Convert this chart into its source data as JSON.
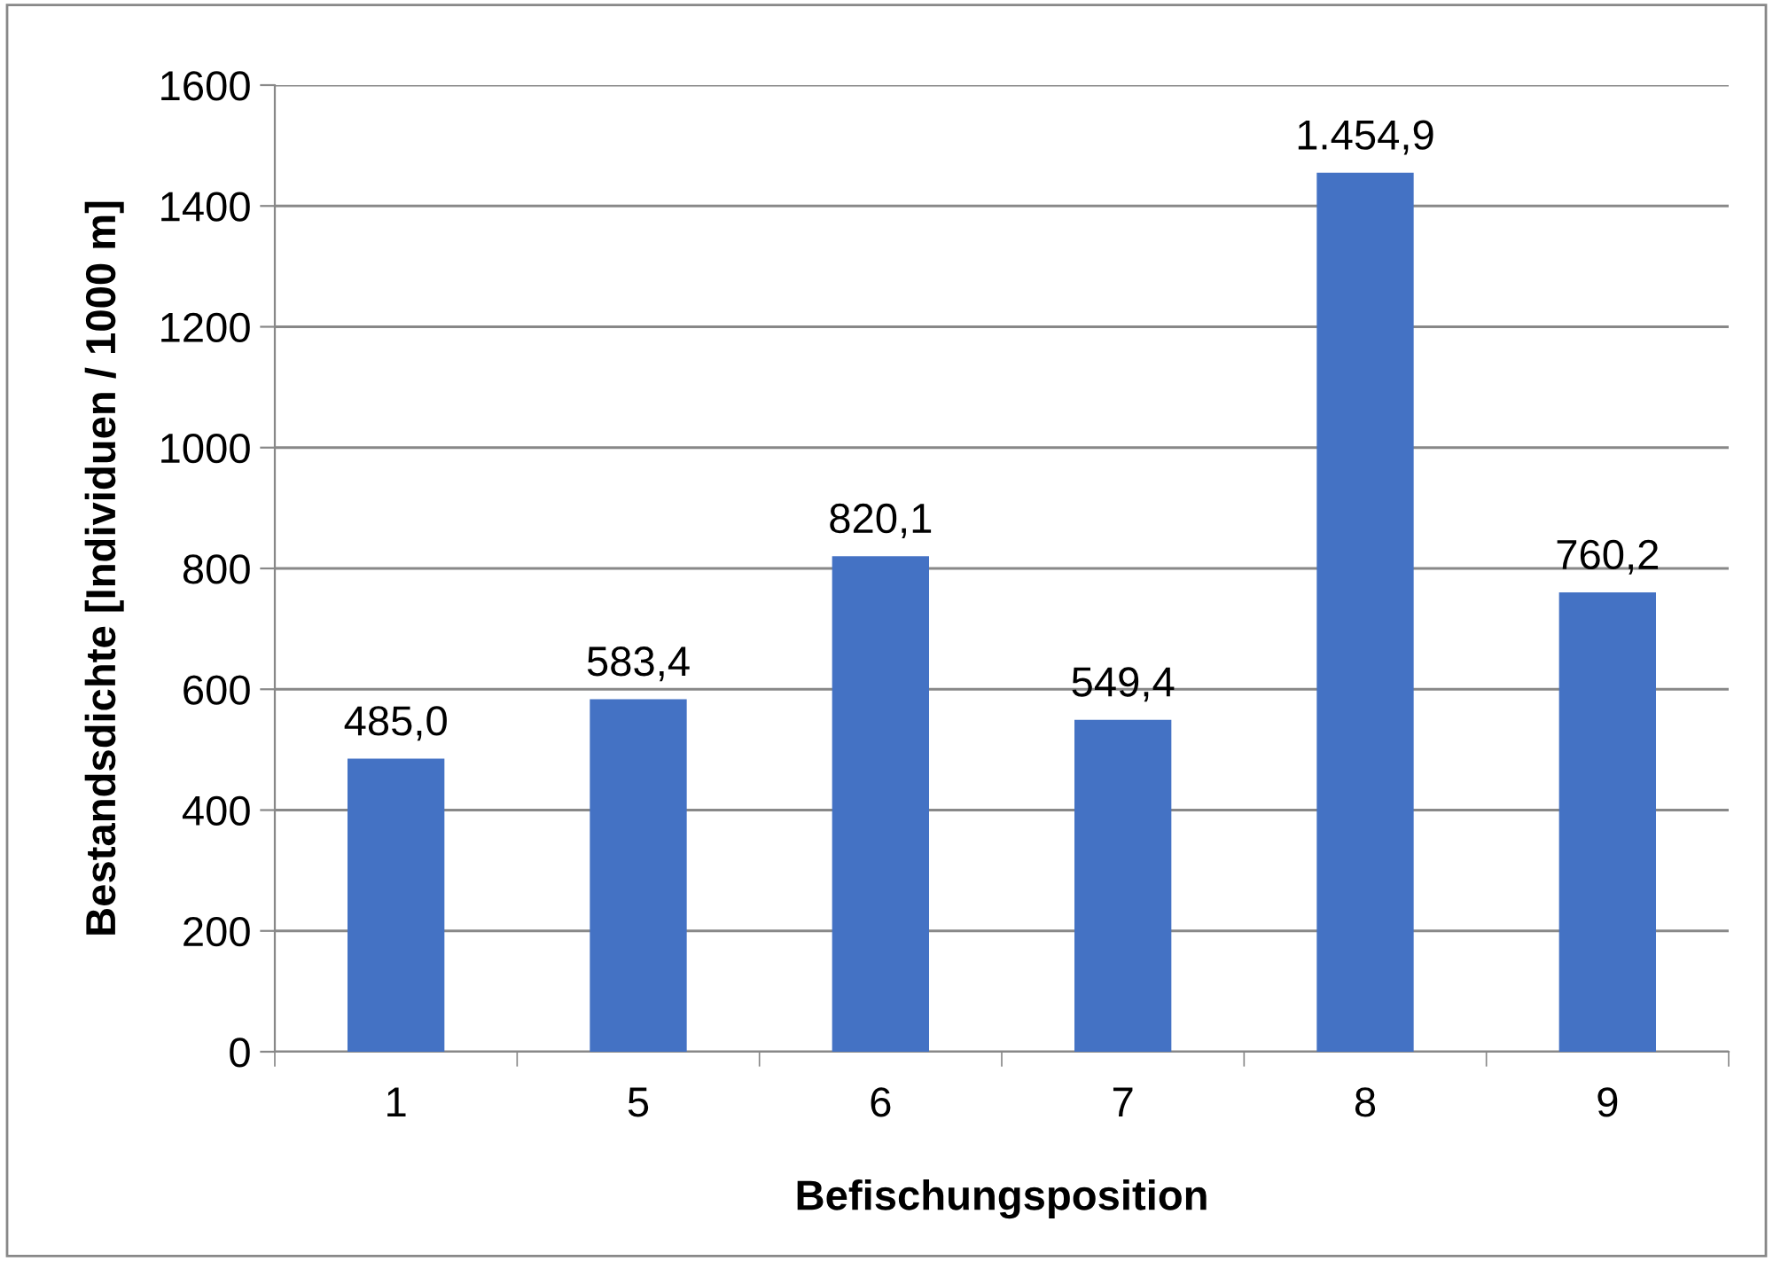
{
  "chart_data": {
    "type": "bar",
    "xlabel": "Befischungsposition",
    "ylabel": "Bestandsdichte [Individuen / 1000 m]",
    "categories": [
      "1",
      "5",
      "6",
      "7",
      "8",
      "9"
    ],
    "values": [
      485.0,
      583.4,
      820.1,
      549.4,
      1454.9,
      760.2
    ],
    "value_labels": [
      "485,0",
      "583,4",
      "820,1",
      "549,4",
      "1.454,9",
      "760,2"
    ],
    "color": "#4472c4",
    "ylim": [
      0,
      1600
    ],
    "yticks": [
      0,
      200,
      400,
      600,
      800,
      1000,
      1200,
      1400,
      1600
    ],
    "grid": "y"
  }
}
